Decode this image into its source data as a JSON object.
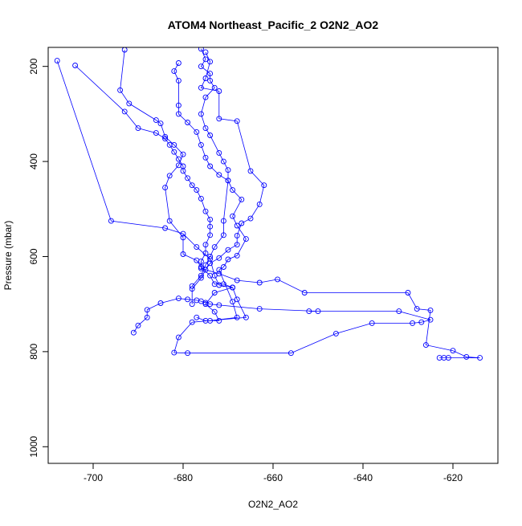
{
  "chart_data": {
    "type": "line",
    "title": "ATOM4 Northeast_Pacific_2 O2N2_AO2",
    "xlabel": "O2N2_AO2",
    "ylabel": "Pressure (mbar)",
    "xlim": [
      -710,
      -610
    ],
    "ylim": [
      1035,
      160
    ],
    "y_reversed": true,
    "x_ticks": [
      -700,
      -680,
      -660,
      -640,
      -620
    ],
    "y_ticks": [
      200,
      400,
      600,
      800,
      1000
    ],
    "grid": false,
    "legend": "none",
    "series": [
      {
        "color": "#0000FF",
        "marker": "open-circle",
        "points": [
          [
            -708,
            188
          ],
          [
            -696,
            525
          ],
          [
            -684,
            540
          ],
          [
            -680,
            552
          ],
          [
            -677,
            580
          ],
          [
            -674,
            605
          ],
          [
            -673,
            640
          ],
          [
            -672,
            660
          ],
          [
            -669,
            665
          ],
          [
            -668,
            690
          ],
          [
            -666,
            728
          ],
          [
            -678,
            738
          ],
          [
            -681,
            770
          ],
          [
            -682,
            802
          ],
          [
            -679,
            803
          ],
          [
            -656,
            803
          ],
          [
            -646,
            762
          ],
          [
            -638,
            740
          ],
          [
            -629,
            740
          ],
          [
            -627,
            738
          ],
          [
            -625,
            733
          ],
          [
            -632,
            715
          ],
          [
            -652,
            715
          ],
          [
            -650,
            715
          ],
          [
            -663,
            710
          ],
          [
            -672,
            702
          ],
          [
            -674,
            700
          ],
          [
            -675,
            697
          ],
          [
            -676,
            694
          ],
          [
            -677,
            692
          ],
          [
            -679,
            690
          ],
          [
            -681,
            688
          ],
          [
            -685,
            698
          ],
          [
            -688,
            712
          ],
          [
            -688,
            728
          ],
          [
            -690,
            745
          ],
          [
            -691,
            760
          ]
        ]
      },
      {
        "color": "#0000FF",
        "marker": "open-circle",
        "points": [
          [
            -704,
            198
          ],
          [
            -693,
            295
          ],
          [
            -690,
            330
          ],
          [
            -686,
            340
          ],
          [
            -684,
            352
          ],
          [
            -683,
            365
          ],
          [
            -682,
            380
          ],
          [
            -681,
            395
          ],
          [
            -680,
            410
          ],
          [
            -680,
            420
          ],
          [
            -679,
            435
          ],
          [
            -678,
            450
          ],
          [
            -677,
            460
          ],
          [
            -676,
            478
          ],
          [
            -675,
            505
          ],
          [
            -674,
            522
          ],
          [
            -674,
            537
          ],
          [
            -674,
            555
          ],
          [
            -675,
            575
          ],
          [
            -675,
            593
          ],
          [
            -676,
            610
          ],
          [
            -676,
            625
          ],
          [
            -672,
            636
          ],
          [
            -668,
            650
          ],
          [
            -663,
            655
          ],
          [
            -659,
            648
          ],
          [
            -653,
            676
          ],
          [
            -630,
            676
          ],
          [
            -628,
            710
          ],
          [
            -625,
            713
          ],
          [
            -626,
            786
          ],
          [
            -620,
            798
          ],
          [
            -617,
            811
          ],
          [
            -614,
            813
          ],
          [
            -622,
            813
          ],
          [
            -621,
            813
          ],
          [
            -623,
            813
          ]
        ]
      },
      {
        "color": "#0000FF",
        "marker": "open-circle",
        "points": [
          [
            -693,
            165
          ],
          [
            -694,
            250
          ],
          [
            -692,
            278
          ],
          [
            -686,
            313
          ],
          [
            -685,
            320
          ],
          [
            -684,
            348
          ],
          [
            -682,
            365
          ],
          [
            -680,
            385
          ],
          [
            -681,
            408
          ],
          [
            -683,
            430
          ],
          [
            -684,
            455
          ],
          [
            -683,
            525
          ],
          [
            -680,
            560
          ],
          [
            -680,
            595
          ],
          [
            -677,
            608
          ],
          [
            -676,
            622
          ],
          [
            -674,
            640
          ],
          [
            -673,
            658
          ],
          [
            -671,
            658
          ],
          [
            -669,
            665
          ],
          [
            -673,
            676
          ],
          [
            -675,
            700
          ],
          [
            -673,
            716
          ],
          [
            -672,
            735
          ],
          [
            -675,
            735
          ],
          [
            -677,
            728
          ]
        ]
      },
      {
        "color": "#0000FF",
        "marker": "open-circle",
        "points": [
          [
            -681,
            193
          ],
          [
            -682,
            210
          ],
          [
            -681,
            230
          ],
          [
            -681,
            282
          ],
          [
            -681,
            300
          ],
          [
            -679,
            318
          ],
          [
            -677,
            338
          ],
          [
            -676,
            365
          ],
          [
            -675,
            392
          ],
          [
            -674,
            410
          ],
          [
            -672,
            428
          ],
          [
            -670,
            440
          ],
          [
            -669,
            460
          ],
          [
            -667,
            480
          ],
          [
            -669,
            515
          ],
          [
            -668,
            535
          ],
          [
            -666,
            563
          ],
          [
            -668,
            598
          ],
          [
            -670,
            606
          ],
          [
            -671,
            622
          ],
          [
            -672,
            628
          ],
          [
            -669,
            695
          ],
          [
            -668,
            728
          ],
          [
            -674,
            735
          ]
        ]
      },
      {
        "color": "#0000FF",
        "marker": "open-circle",
        "points": [
          [
            -676,
            163
          ],
          [
            -675,
            185
          ],
          [
            -676,
            200
          ],
          [
            -674,
            215
          ],
          [
            -674,
            230
          ],
          [
            -673,
            245
          ],
          [
            -675,
            265
          ],
          [
            -676,
            300
          ],
          [
            -675,
            330
          ],
          [
            -674,
            345
          ],
          [
            -672,
            382
          ],
          [
            -671,
            400
          ],
          [
            -670,
            418
          ],
          [
            -670,
            440
          ],
          [
            -671,
            525
          ],
          [
            -671,
            555
          ],
          [
            -673,
            580
          ],
          [
            -674,
            600
          ],
          [
            -675,
            618
          ],
          [
            -676,
            640
          ],
          [
            -678,
            662
          ]
        ]
      },
      {
        "color": "#0000FF",
        "marker": "open-circle",
        "points": [
          [
            -675,
            170
          ],
          [
            -674,
            190
          ],
          [
            -675,
            225
          ],
          [
            -676,
            245
          ],
          [
            -672,
            252
          ],
          [
            -672,
            310
          ],
          [
            -668,
            315
          ],
          [
            -665,
            420
          ],
          [
            -662,
            450
          ],
          [
            -663,
            490
          ],
          [
            -665,
            520
          ],
          [
            -667,
            530
          ],
          [
            -668,
            556
          ],
          [
            -668,
            575
          ],
          [
            -670,
            586
          ],
          [
            -672,
            603
          ],
          [
            -674,
            614
          ],
          [
            -675,
            628
          ],
          [
            -676,
            645
          ],
          [
            -678,
            668
          ],
          [
            -678,
            700
          ]
        ]
      }
    ]
  }
}
